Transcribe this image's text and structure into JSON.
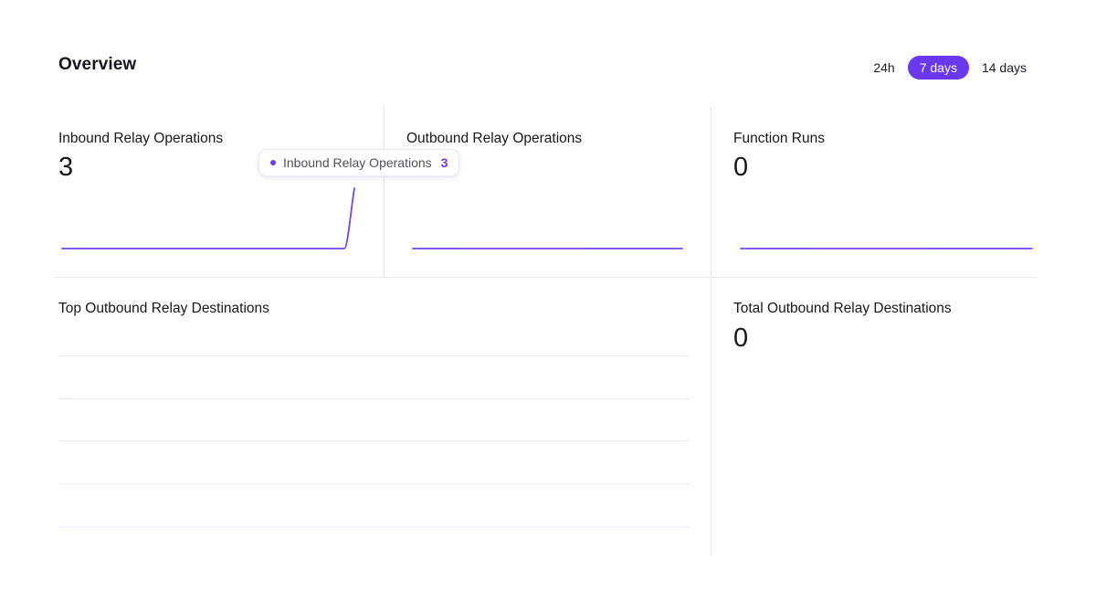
{
  "colors": {
    "accent": "#6938ef",
    "chart_line": "#7546ea",
    "tooltip_value": "#6d3bef",
    "value_text": "#18181b"
  },
  "header": {
    "title": "Overview",
    "time_ranges": [
      {
        "label": "24h",
        "selected": false
      },
      {
        "label": "7 days",
        "selected": true
      },
      {
        "label": "14 days",
        "selected": false
      }
    ]
  },
  "metrics": [
    {
      "title": "Inbound Relay Operations",
      "value": "3"
    },
    {
      "title": "Outbound Relay Operations",
      "value": "0"
    },
    {
      "title": "Function Runs",
      "value": "0"
    }
  ],
  "chart_tooltip": {
    "series": "Inbound Relay Operations",
    "value": "3"
  },
  "sections": {
    "top_destinations": {
      "title": "Top Outbound Relay Destinations",
      "row_count": 5,
      "rows": []
    },
    "total_destinations": {
      "title": "Total Outbound Relay Destinations",
      "value": "0"
    }
  },
  "chart_data": [
    {
      "type": "line",
      "title": "Inbound Relay Operations",
      "x_range": "7 days",
      "ylim": [
        0,
        3
      ],
      "values": [
        0,
        0,
        0,
        0,
        0,
        0,
        0,
        0,
        0,
        0,
        0,
        0,
        0,
        0,
        0,
        0,
        0,
        0,
        0,
        0,
        0,
        0,
        0,
        0,
        0,
        0,
        0,
        0,
        0,
        3
      ],
      "hovered_point": {
        "series": "Inbound Relay Operations",
        "value": 3
      }
    },
    {
      "type": "line",
      "title": "Outbound Relay Operations",
      "x_range": "7 days",
      "ylim": [
        0,
        1
      ],
      "values": [
        0,
        0,
        0,
        0,
        0,
        0,
        0,
        0
      ]
    },
    {
      "type": "line",
      "title": "Function Runs",
      "x_range": "7 days",
      "ylim": [
        0,
        1
      ],
      "values": [
        0,
        0,
        0,
        0,
        0,
        0,
        0,
        0
      ]
    }
  ]
}
